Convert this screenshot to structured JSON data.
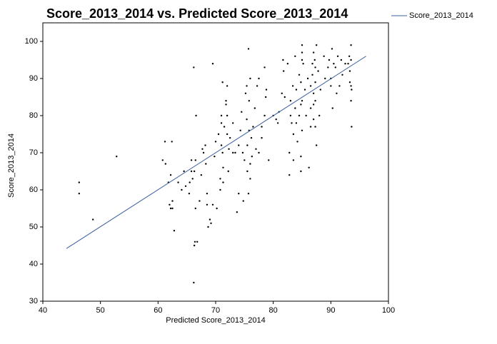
{
  "chart_data": {
    "type": "scatter",
    "title": "Score_2013_2014 vs. Predicted Score_2013_2014",
    "x_label": "Predicted Score_2013_2014",
    "y_label": "Score_2013_2014",
    "xlim": [
      40,
      100
    ],
    "xticks": [
      40,
      50,
      60,
      70,
      80,
      90,
      100
    ],
    "ylim": [
      30,
      105
    ],
    "yticks": [
      30,
      40,
      50,
      60,
      70,
      80,
      90,
      100
    ],
    "grid": false,
    "legend": "top-right",
    "series": [
      {
        "type": "scatter",
        "color": "#000000",
        "x": [
          46.3,
          46.3,
          48.7,
          52.8,
          60.8,
          61.2,
          61.3,
          61.8,
          62,
          62.2,
          62.5,
          62.5,
          62.4,
          62.8,
          62.2,
          63.5,
          64.1,
          64.5,
          64.8,
          65.4,
          65.5,
          65.8,
          65.8,
          66,
          66.2,
          66.2,
          66.4,
          66.3,
          66.5,
          66.6,
          66.8,
          66.3,
          66.5,
          67.2,
          67.5,
          67.7,
          67.9,
          68.2,
          68.3,
          68.5,
          68.5,
          68.7,
          69,
          69.2,
          69.5,
          69.5,
          69.8,
          70,
          70.2,
          70.5,
          70.8,
          70.8,
          71,
          71,
          71,
          71.2,
          71.3,
          71.3,
          71.2,
          71.5,
          71.8,
          71.8,
          72,
          72,
          72,
          72.2,
          72.3,
          72.5,
          73,
          73,
          73.4,
          73.7,
          74,
          74,
          74.3,
          74.5,
          74.7,
          74.8,
          75,
          75.2,
          75.4,
          75.4,
          75.5,
          75.5,
          75.7,
          75.7,
          75.8,
          75.8,
          76,
          76,
          76,
          76.2,
          76.3,
          76.5,
          76.8,
          77,
          77.2,
          77.5,
          77.5,
          78,
          78,
          78.5,
          78.5,
          78.7,
          78.8,
          79.2,
          80,
          80.5,
          80.8,
          81,
          81.5,
          81.7,
          81.8,
          82,
          82.5,
          82.8,
          82.8,
          83,
          83,
          83.2,
          83.4,
          83.5,
          83.5,
          83.8,
          83.8,
          84,
          84,
          84.2,
          84.5,
          84.5,
          84.8,
          84.8,
          84.8,
          84.8,
          85,
          85,
          85,
          85,
          85,
          85.2,
          85.5,
          85.7,
          86,
          86.2,
          86.5,
          86.5,
          86.5,
          86.8,
          86.8,
          87,
          87,
          87,
          87,
          87.2,
          87.3,
          87.3,
          87.3,
          87.3,
          87.5,
          87.5,
          87.8,
          88,
          88.2,
          88.8,
          89,
          89.5,
          89.7,
          90,
          90,
          90.2,
          90.3,
          90.5,
          90.8,
          91,
          91.2,
          91.5,
          91.8,
          92,
          92.5,
          93,
          93.2,
          93.3,
          93.3,
          93.5,
          93.5,
          93.5,
          93.6,
          93.6,
          93.5
        ],
        "values": [
          62,
          59,
          52,
          69,
          68,
          73,
          67,
          62,
          56,
          55,
          57,
          55,
          73,
          49,
          64,
          62,
          60,
          65,
          61,
          59,
          62,
          65,
          68,
          63,
          35,
          93,
          46,
          45,
          55,
          80,
          46,
          65,
          68,
          57,
          64,
          71,
          70,
          72,
          67,
          59,
          56,
          50,
          52,
          51,
          56,
          94,
          69,
          73,
          55,
          75,
          63,
          60,
          80,
          78,
          72,
          70,
          66,
          62,
          89,
          77,
          83,
          84,
          88,
          75,
          80,
          65,
          71,
          74,
          78,
          70,
          70,
          54,
          59,
          72,
          76,
          81,
          70,
          57,
          68,
          86,
          88,
          79,
          65,
          72,
          98,
          59,
          84,
          76,
          90,
          67,
          63,
          74,
          69,
          77,
          82,
          71,
          88,
          90,
          70,
          77,
          74,
          93,
          80,
          85,
          87,
          68,
          80,
          79,
          78,
          81,
          86,
          95,
          92,
          85,
          94,
          64,
          70,
          84,
          80,
          78,
          88,
          75,
          68,
          82,
          96,
          87,
          78,
          73,
          91,
          80,
          89,
          83,
          65,
          69,
          99,
          97,
          95,
          84,
          76,
          94,
          87,
          80,
          90,
          66,
          88,
          82,
          77,
          94,
          91,
          97,
          86,
          83,
          79,
          95,
          93,
          89,
          84,
          77,
          72,
          99,
          92,
          80,
          87,
          96,
          90,
          93,
          95,
          90,
          88,
          98,
          82,
          94,
          93,
          86,
          96,
          88,
          95,
          91,
          94,
          94,
          96,
          92,
          89,
          99,
          95,
          88,
          87,
          77,
          84
        ]
      },
      {
        "type": "line",
        "name": "Score_2013_2014",
        "color": "#3a5f9e",
        "x": [
          44.1,
          96.1
        ],
        "values": [
          44.2,
          96
        ]
      }
    ]
  }
}
